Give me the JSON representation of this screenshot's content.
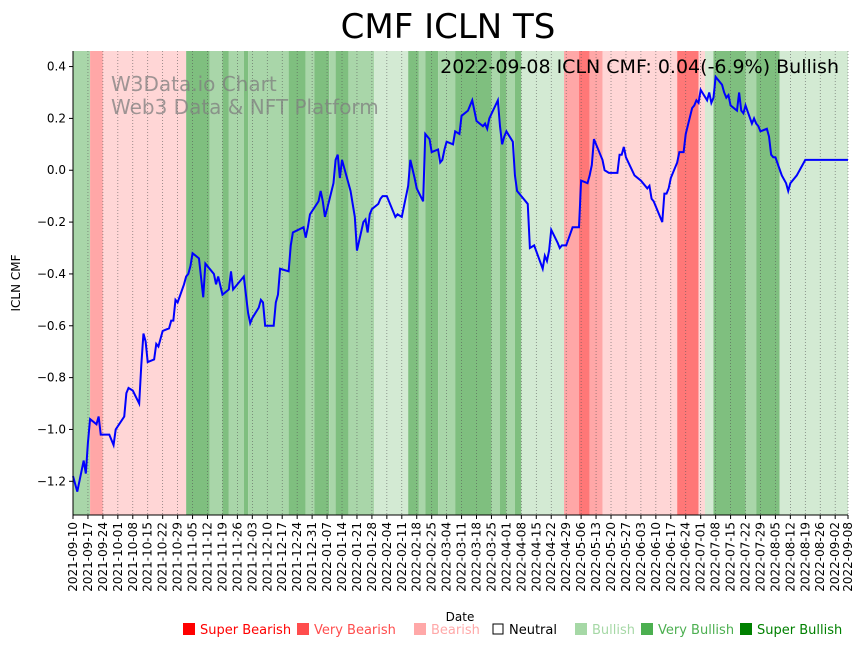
{
  "chart_data": {
    "type": "line",
    "title": "CMF ICLN TS",
    "annotation": "2022-09-08 ICLN CMF: 0.04(-6.9%) Bullish",
    "watermark": [
      "W3Data.io Chart",
      "Web3 Data & NFT Platform"
    ],
    "xlabel": "Date",
    "ylabel": "ICLN CMF",
    "ylim": [
      -1.33,
      0.46
    ],
    "yticks": [
      -1.2,
      -1.0,
      -0.8,
      -0.6,
      -0.4,
      -0.2,
      0.0,
      0.2,
      0.4
    ],
    "ytick_labels": [
      "−1.2",
      "−1.0",
      "−0.8",
      "−0.6",
      "−0.4",
      "−0.2",
      "0.0",
      "0.2",
      "0.4"
    ],
    "x_start": "2021-09-10",
    "x_end": "2022-09-08",
    "xticks": [
      "2021-09-10",
      "2021-09-17",
      "2021-09-24",
      "2021-10-01",
      "2021-10-08",
      "2021-10-15",
      "2021-10-22",
      "2021-10-29",
      "2021-11-05",
      "2021-11-12",
      "2021-11-19",
      "2021-11-26",
      "2021-12-03",
      "2021-12-10",
      "2021-12-17",
      "2021-12-24",
      "2021-12-31",
      "2022-01-07",
      "2022-01-14",
      "2022-01-21",
      "2022-01-28",
      "2022-02-04",
      "2022-02-11",
      "2022-02-18",
      "2022-02-25",
      "2022-03-04",
      "2022-03-11",
      "2022-03-18",
      "2022-03-25",
      "2022-04-01",
      "2022-04-08",
      "2022-04-15",
      "2022-04-22",
      "2022-04-29",
      "2022-05-06",
      "2022-05-13",
      "2022-05-20",
      "2022-05-27",
      "2022-06-03",
      "2022-06-10",
      "2022-06-17",
      "2022-06-24",
      "2022-07-01",
      "2022-07-08",
      "2022-07-15",
      "2022-07-22",
      "2022-07-29",
      "2022-08-05",
      "2022-08-12",
      "2022-08-19",
      "2022-08-26",
      "2022-09-02",
      "2022-09-08"
    ],
    "series": [
      {
        "name": "ICLN CMF",
        "color": "#0000ff",
        "points": [
          [
            "2021-09-10",
            -1.18
          ],
          [
            "2021-09-12",
            -1.24
          ],
          [
            "2021-09-15",
            -1.12
          ],
          [
            "2021-09-16",
            -1.17
          ],
          [
            "2021-09-17",
            -1.05
          ],
          [
            "2021-09-18",
            -0.96
          ],
          [
            "2021-09-21",
            -0.98
          ],
          [
            "2021-09-22",
            -0.95
          ],
          [
            "2021-09-23",
            -1.02
          ],
          [
            "2021-09-27",
            -1.02
          ],
          [
            "2021-09-29",
            -1.06
          ],
          [
            "2021-09-30",
            -1.0
          ],
          [
            "2021-10-04",
            -0.95
          ],
          [
            "2021-10-05",
            -0.86
          ],
          [
            "2021-10-06",
            -0.84
          ],
          [
            "2021-10-08",
            -0.85
          ],
          [
            "2021-10-11",
            -0.9
          ],
          [
            "2021-10-12",
            -0.75
          ],
          [
            "2021-10-13",
            -0.63
          ],
          [
            "2021-10-14",
            -0.66
          ],
          [
            "2021-10-15",
            -0.74
          ],
          [
            "2021-10-18",
            -0.73
          ],
          [
            "2021-10-19",
            -0.67
          ],
          [
            "2021-10-20",
            -0.68
          ],
          [
            "2021-10-22",
            -0.62
          ],
          [
            "2021-10-25",
            -0.61
          ],
          [
            "2021-10-26",
            -0.58
          ],
          [
            "2021-10-27",
            -0.58
          ],
          [
            "2021-10-28",
            -0.5
          ],
          [
            "2021-10-29",
            -0.51
          ],
          [
            "2021-11-01",
            -0.44
          ],
          [
            "2021-11-02",
            -0.41
          ],
          [
            "2021-11-03",
            -0.4
          ],
          [
            "2021-11-04",
            -0.37
          ],
          [
            "2021-11-05",
            -0.32
          ],
          [
            "2021-11-08",
            -0.34
          ],
          [
            "2021-11-10",
            -0.49
          ],
          [
            "2021-11-11",
            -0.36
          ],
          [
            "2021-11-15",
            -0.4
          ],
          [
            "2021-11-16",
            -0.44
          ],
          [
            "2021-11-17",
            -0.41
          ],
          [
            "2021-11-19",
            -0.48
          ],
          [
            "2021-11-22",
            -0.46
          ],
          [
            "2021-11-23",
            -0.39
          ],
          [
            "2021-11-24",
            -0.46
          ],
          [
            "2021-11-29",
            -0.41
          ],
          [
            "2021-12-01",
            -0.55
          ],
          [
            "2021-12-02",
            -0.59
          ],
          [
            "2021-12-03",
            -0.57
          ],
          [
            "2021-12-06",
            -0.53
          ],
          [
            "2021-12-07",
            -0.5
          ],
          [
            "2021-12-08",
            -0.51
          ],
          [
            "2021-12-09",
            -0.6
          ],
          [
            "2021-12-13",
            -0.6
          ],
          [
            "2021-12-14",
            -0.51
          ],
          [
            "2021-12-15",
            -0.48
          ],
          [
            "2021-12-16",
            -0.38
          ],
          [
            "2021-12-20",
            -0.39
          ],
          [
            "2021-12-21",
            -0.29
          ],
          [
            "2021-12-22",
            -0.24
          ],
          [
            "2021-12-27",
            -0.22
          ],
          [
            "2021-12-28",
            -0.26
          ],
          [
            "2021-12-29",
            -0.22
          ],
          [
            "2021-12-30",
            -0.17
          ],
          [
            "2022-01-03",
            -0.12
          ],
          [
            "2022-01-04",
            -0.08
          ],
          [
            "2022-01-05",
            -0.12
          ],
          [
            "2022-01-06",
            -0.18
          ],
          [
            "2022-01-07",
            -0.15
          ],
          [
            "2022-01-10",
            -0.05
          ],
          [
            "2022-01-11",
            0.04
          ],
          [
            "2022-01-12",
            0.06
          ],
          [
            "2022-01-13",
            -0.03
          ],
          [
            "2022-01-14",
            0.04
          ],
          [
            "2022-01-18",
            -0.08
          ],
          [
            "2022-01-20",
            -0.18
          ],
          [
            "2022-01-21",
            -0.31
          ],
          [
            "2022-01-24",
            -0.2
          ],
          [
            "2022-01-25",
            -0.19
          ],
          [
            "2022-01-26",
            -0.24
          ],
          [
            "2022-01-27",
            -0.17
          ],
          [
            "2022-01-28",
            -0.15
          ],
          [
            "2022-01-31",
            -0.13
          ],
          [
            "2022-02-01",
            -0.11
          ],
          [
            "2022-02-02",
            -0.1
          ],
          [
            "2022-02-04",
            -0.1
          ],
          [
            "2022-02-07",
            -0.16
          ],
          [
            "2022-02-08",
            -0.18
          ],
          [
            "2022-02-09",
            -0.17
          ],
          [
            "2022-02-11",
            -0.18
          ],
          [
            "2022-02-14",
            -0.06
          ],
          [
            "2022-02-15",
            0.04
          ],
          [
            "2022-02-17",
            -0.03
          ],
          [
            "2022-02-18",
            -0.07
          ],
          [
            "2022-02-21",
            -0.12
          ],
          [
            "2022-02-22",
            0.14
          ],
          [
            "2022-02-24",
            0.12
          ],
          [
            "2022-02-25",
            0.07
          ],
          [
            "2022-02-28",
            0.08
          ],
          [
            "2022-03-01",
            0.03
          ],
          [
            "2022-03-02",
            0.04
          ],
          [
            "2022-03-03",
            0.08
          ],
          [
            "2022-03-04",
            0.11
          ],
          [
            "2022-03-07",
            0.1
          ],
          [
            "2022-03-08",
            0.15
          ],
          [
            "2022-03-10",
            0.14
          ],
          [
            "2022-03-11",
            0.21
          ],
          [
            "2022-03-14",
            0.23
          ],
          [
            "2022-03-15",
            0.25
          ],
          [
            "2022-03-16",
            0.27
          ],
          [
            "2022-03-17",
            0.23
          ],
          [
            "2022-03-18",
            0.19
          ],
          [
            "2022-03-21",
            0.17
          ],
          [
            "2022-03-22",
            0.18
          ],
          [
            "2022-03-23",
            0.16
          ],
          [
            "2022-03-24",
            0.2
          ],
          [
            "2022-03-28",
            0.27
          ],
          [
            "2022-03-29",
            0.17
          ],
          [
            "2022-03-30",
            0.1
          ],
          [
            "2022-03-31",
            0.13
          ],
          [
            "2022-04-01",
            0.15
          ],
          [
            "2022-04-04",
            0.11
          ],
          [
            "2022-04-05",
            -0.02
          ],
          [
            "2022-04-06",
            -0.08
          ],
          [
            "2022-04-08",
            -0.1
          ],
          [
            "2022-04-11",
            -0.13
          ],
          [
            "2022-04-12",
            -0.3
          ],
          [
            "2022-04-14",
            -0.29
          ],
          [
            "2022-04-18",
            -0.38
          ],
          [
            "2022-04-19",
            -0.33
          ],
          [
            "2022-04-20",
            -0.35
          ],
          [
            "2022-04-21",
            -0.31
          ],
          [
            "2022-04-22",
            -0.23
          ],
          [
            "2022-04-25",
            -0.28
          ],
          [
            "2022-04-26",
            -0.3
          ],
          [
            "2022-04-27",
            -0.29
          ],
          [
            "2022-04-29",
            -0.29
          ],
          [
            "2022-05-02",
            -0.22
          ],
          [
            "2022-05-03",
            -0.22
          ],
          [
            "2022-05-05",
            -0.22
          ],
          [
            "2022-05-06",
            -0.04
          ],
          [
            "2022-05-09",
            -0.05
          ],
          [
            "2022-05-10",
            -0.02
          ],
          [
            "2022-05-11",
            0.02
          ],
          [
            "2022-05-12",
            0.12
          ],
          [
            "2022-05-16",
            0.04
          ],
          [
            "2022-05-17",
            0.0
          ],
          [
            "2022-05-19",
            -0.01
          ],
          [
            "2022-05-23",
            -0.01
          ],
          [
            "2022-05-24",
            0.06
          ],
          [
            "2022-05-25",
            0.06
          ],
          [
            "2022-05-26",
            0.09
          ],
          [
            "2022-05-27",
            0.05
          ],
          [
            "2022-05-31",
            -0.02
          ],
          [
            "2022-06-03",
            -0.04
          ],
          [
            "2022-06-06",
            -0.07
          ],
          [
            "2022-06-07",
            -0.06
          ],
          [
            "2022-06-08",
            -0.11
          ],
          [
            "2022-06-09",
            -0.12
          ],
          [
            "2022-06-13",
            -0.2
          ],
          [
            "2022-06-14",
            -0.09
          ],
          [
            "2022-06-15",
            -0.09
          ],
          [
            "2022-06-16",
            -0.07
          ],
          [
            "2022-06-17",
            -0.03
          ],
          [
            "2022-06-20",
            0.03
          ],
          [
            "2022-06-21",
            0.07
          ],
          [
            "2022-06-22",
            0.07
          ],
          [
            "2022-06-23",
            0.07
          ],
          [
            "2022-06-24",
            0.14
          ],
          [
            "2022-06-27",
            0.24
          ],
          [
            "2022-06-28",
            0.25
          ],
          [
            "2022-06-29",
            0.27
          ],
          [
            "2022-06-30",
            0.26
          ],
          [
            "2022-07-01",
            0.31
          ],
          [
            "2022-07-04",
            0.27
          ],
          [
            "2022-07-05",
            0.3
          ],
          [
            "2022-07-06",
            0.26
          ],
          [
            "2022-07-07",
            0.28
          ],
          [
            "2022-07-08",
            0.36
          ],
          [
            "2022-07-11",
            0.33
          ],
          [
            "2022-07-12",
            0.3
          ],
          [
            "2022-07-13",
            0.28
          ],
          [
            "2022-07-14",
            0.29
          ],
          [
            "2022-07-15",
            0.25
          ],
          [
            "2022-07-18",
            0.23
          ],
          [
            "2022-07-19",
            0.3
          ],
          [
            "2022-07-20",
            0.23
          ],
          [
            "2022-07-21",
            0.22
          ],
          [
            "2022-07-22",
            0.25
          ],
          [
            "2022-07-25",
            0.18
          ],
          [
            "2022-07-26",
            0.2
          ],
          [
            "2022-07-27",
            0.18
          ],
          [
            "2022-07-28",
            0.17
          ],
          [
            "2022-07-29",
            0.15
          ],
          [
            "2022-08-01",
            0.16
          ],
          [
            "2022-08-02",
            0.13
          ],
          [
            "2022-08-03",
            0.06
          ],
          [
            "2022-08-04",
            0.05
          ],
          [
            "2022-08-05",
            0.05
          ],
          [
            "2022-08-08",
            -0.02
          ],
          [
            "2022-08-10",
            -0.05
          ],
          [
            "2022-08-11",
            -0.08
          ],
          [
            "2022-08-12",
            -0.05
          ],
          [
            "2022-08-15",
            -0.02
          ],
          [
            "2022-08-17",
            0.01
          ],
          [
            "2022-08-19",
            0.04
          ],
          [
            "2022-09-08",
            0.04
          ]
        ]
      }
    ],
    "regime_bands": [
      [
        "2021-09-10",
        "2021-09-18",
        "bullish"
      ],
      [
        "2021-09-18",
        "2021-09-24",
        "very_bearish"
      ],
      [
        "2021-09-24",
        "2021-11-02",
        "bearish"
      ],
      [
        "2021-11-02",
        "2021-11-13",
        "very_bullish"
      ],
      [
        "2021-11-13",
        "2021-11-19",
        "bullish"
      ],
      [
        "2021-11-19",
        "2021-11-22",
        "very_bullish"
      ],
      [
        "2021-11-22",
        "2021-11-29",
        "bullish"
      ],
      [
        "2021-11-29",
        "2021-12-01",
        "very_bullish"
      ],
      [
        "2021-12-01",
        "2021-12-20",
        "bullish"
      ],
      [
        "2021-12-20",
        "2021-12-28",
        "very_bullish"
      ],
      [
        "2021-12-28",
        "2022-01-01",
        "bullish"
      ],
      [
        "2022-01-01",
        "2022-01-08",
        "very_bullish"
      ],
      [
        "2022-01-08",
        "2022-01-11",
        "bullish"
      ],
      [
        "2022-01-11",
        "2022-01-17",
        "very_bullish"
      ],
      [
        "2022-01-17",
        "2022-01-29",
        "bullish"
      ],
      [
        "2022-01-29",
        "2022-02-14",
        "bullish_light"
      ],
      [
        "2022-02-14",
        "2022-02-19",
        "very_bullish"
      ],
      [
        "2022-02-19",
        "2022-02-22",
        "bullish"
      ],
      [
        "2022-02-22",
        "2022-02-28",
        "very_bullish"
      ],
      [
        "2022-02-28",
        "2022-03-08",
        "bullish"
      ],
      [
        "2022-03-08",
        "2022-03-25",
        "very_bullish"
      ],
      [
        "2022-03-25",
        "2022-03-29",
        "bullish"
      ],
      [
        "2022-03-29",
        "2022-04-01",
        "very_bullish"
      ],
      [
        "2022-04-01",
        "2022-04-05",
        "bullish"
      ],
      [
        "2022-04-05",
        "2022-04-08",
        "very_bullish"
      ],
      [
        "2022-04-08",
        "2022-04-28",
        "bullish_light"
      ],
      [
        "2022-04-28",
        "2022-05-05",
        "very_bearish"
      ],
      [
        "2022-05-05",
        "2022-05-10",
        "super_bearish"
      ],
      [
        "2022-05-10",
        "2022-05-16",
        "very_bearish"
      ],
      [
        "2022-05-16",
        "2022-06-20",
        "bearish"
      ],
      [
        "2022-06-20",
        "2022-06-30",
        "super_bearish"
      ],
      [
        "2022-06-30",
        "2022-07-03",
        "bearish"
      ],
      [
        "2022-07-03",
        "2022-07-07",
        "bullish_light"
      ],
      [
        "2022-07-07",
        "2022-07-22",
        "very_bullish"
      ],
      [
        "2022-07-22",
        "2022-07-27",
        "bullish"
      ],
      [
        "2022-07-27",
        "2022-08-07",
        "very_bullish"
      ],
      [
        "2022-08-07",
        "2022-09-08",
        "bullish_light"
      ]
    ],
    "band_colors": {
      "super_bearish": "#ff7777",
      "very_bearish": "#ffa7a7",
      "bearish": "#ffd6d6",
      "bullish_light": "#d3ead3",
      "bullish": "#a9d6a9",
      "very_bullish": "#7fbf7f"
    },
    "legend": [
      {
        "label": "Super Bearish",
        "color": "#ff0000"
      },
      {
        "label": "Very Bearish",
        "color": "#ff4d4d"
      },
      {
        "label": "Bearish",
        "color": "#ffa8a8"
      },
      {
        "label": "Neutral",
        "color": "#000000"
      },
      {
        "label": "Bullish",
        "color": "#a6d8a6"
      },
      {
        "label": "Very Bullish",
        "color": "#4caf50"
      },
      {
        "label": "Super Bullish",
        "color": "#008000"
      }
    ]
  }
}
